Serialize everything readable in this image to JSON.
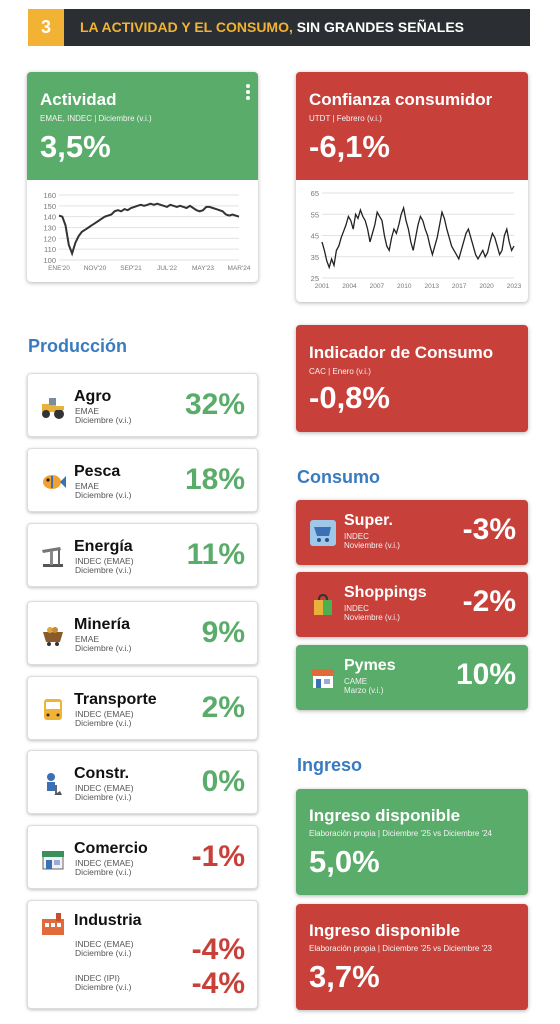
{
  "header": {
    "number": "3",
    "title_highlight": "LA ACTIVIDAD Y EL CONSUMO,",
    "title_rest": " SIN GRANDES SEÑALES"
  },
  "actividad": {
    "title": "Actividad",
    "source": "EMAE, INDEC | Diciembre (v.i.)",
    "value": "3,5%",
    "menu_icon": "more-vert-icon",
    "chart_data": {
      "type": "line",
      "ylim": [
        100,
        160
      ],
      "yticks": [
        "160",
        "150",
        "140",
        "130",
        "120",
        "110",
        "100"
      ],
      "xticks": [
        "ENE'20",
        "NOV'20",
        "SEP'21",
        "JUL'22",
        "MAY'23",
        "MAR'24"
      ],
      "values": [
        141,
        140,
        132,
        114,
        106,
        116,
        122,
        126,
        128,
        130,
        132,
        134,
        136,
        138,
        140,
        141,
        142,
        145,
        146,
        145,
        147,
        146,
        148,
        149,
        150,
        151,
        150,
        151,
        152,
        151,
        152,
        151,
        150,
        149,
        151,
        150,
        149,
        150,
        149,
        148,
        150,
        148,
        146,
        145,
        146,
        149,
        149,
        148,
        147,
        146,
        145,
        142,
        141,
        142,
        141,
        140
      ]
    }
  },
  "confianza": {
    "title": "Confianza consumidor",
    "source": "UTDT | Febrero (v.i.)",
    "value": "-6,1%",
    "chart_data": {
      "type": "line",
      "ylim": [
        25,
        65
      ],
      "yticks": [
        "65",
        "55",
        "45",
        "35",
        "25"
      ],
      "xticks": [
        "2001",
        "2004",
        "2007",
        "2010",
        "2013",
        "2017",
        "2020",
        "2023"
      ],
      "values": [
        42,
        38,
        33,
        30,
        34,
        31,
        38,
        40,
        44,
        47,
        50,
        54,
        52,
        48,
        55,
        53,
        57,
        54,
        52,
        48,
        42,
        46,
        50,
        56,
        54,
        52,
        45,
        40,
        38,
        44,
        48,
        46,
        50,
        55,
        58,
        52,
        48,
        42,
        38,
        44,
        50,
        54,
        52,
        48,
        45,
        40,
        36,
        40,
        44,
        50,
        56,
        53,
        48,
        44,
        40,
        38,
        36,
        34,
        38,
        42,
        46,
        48,
        44,
        40,
        36,
        34,
        36,
        38,
        35,
        37,
        42,
        46,
        44,
        40,
        36,
        38,
        45,
        48,
        42,
        38,
        40
      ]
    }
  },
  "produccion": {
    "title": "Producción",
    "items": [
      {
        "name": "Agro",
        "src1": "EMAE",
        "src2": "Diciembre (v.i.)",
        "value": "32%",
        "sign": "pos",
        "icon": "tractor-icon"
      },
      {
        "name": "Pesca",
        "src1": "EMAE",
        "src2": "Diciembre (v.i.)",
        "value": "18%",
        "sign": "pos",
        "icon": "fish-icon"
      },
      {
        "name": "Energía",
        "src1": "INDEC (EMAE)",
        "src2": "Diciembre (v.i.)",
        "value": "11%",
        "sign": "pos",
        "icon": "oil-pump-icon"
      },
      {
        "name": "Minería",
        "src1": "EMAE",
        "src2": "Diciembre (v.i.)",
        "value": "9%",
        "sign": "pos",
        "icon": "mining-cart-icon"
      },
      {
        "name": "Transporte",
        "src1": "INDEC (EMAE)",
        "src2": "Diciembre (v.i.)",
        "value": "2%",
        "sign": "pos",
        "icon": "bus-icon"
      },
      {
        "name": "Constr.",
        "src1": "INDEC (EMAE)",
        "src2": "Diciembre (v.i.)",
        "value": "0%",
        "sign": "pos",
        "icon": "construction-worker-icon"
      },
      {
        "name": "Comercio",
        "src1": "INDEC (EMAE)",
        "src2": "Diciembre (v.i.)",
        "value": "-1%",
        "sign": "neg",
        "icon": "store-icon"
      }
    ],
    "industria": {
      "name": "Industria",
      "icon": "factory-icon",
      "src_a1": "INDEC (EMAE)",
      "src_a2": "Diciembre (v.i.)",
      "value_a": "-4%",
      "src_b1": "INDEC (IPI)",
      "src_b2": "Diciembre (v.i.)",
      "value_b": "-4%"
    }
  },
  "indicador": {
    "title": "Indicador de Consumo",
    "source": "CAC | Enero (v.i.)",
    "value": "-0,8%"
  },
  "consumo": {
    "title": "Consumo",
    "items": [
      {
        "name": "Super.",
        "src1": "INDEC",
        "src2": "Noviembre (v.i.)",
        "value": "-3%",
        "color": "red",
        "icon": "supermarket-cart-icon"
      },
      {
        "name": "Shoppings",
        "src1": "INDEC",
        "src2": "Noviembre (v.i.)",
        "value": "-2%",
        "color": "red",
        "icon": "shopping-bag-icon"
      },
      {
        "name": "Pymes",
        "src1": "CAME",
        "src2": "Marzo (v.i.)",
        "value": "10%",
        "color": "green",
        "icon": "shop-icon"
      }
    ]
  },
  "ingreso": {
    "title": "Ingreso",
    "items": [
      {
        "title": "Ingreso disponible",
        "source": "Elaboración propia | Diciembre '25 vs Diciembre '24",
        "value": "5,0%"
      },
      {
        "title": "Ingreso disponible",
        "source": "Elaboración propia | Diciembre '25 vs Diciembre '23",
        "value": "3,7%"
      }
    ]
  }
}
